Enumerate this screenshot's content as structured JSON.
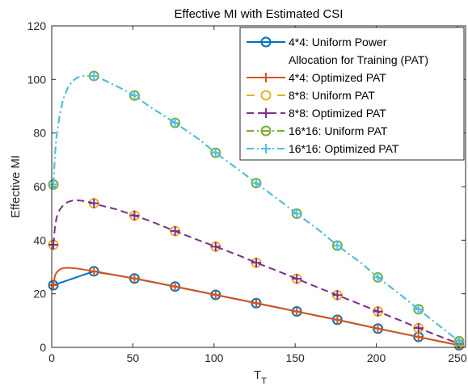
{
  "chart_data": {
    "type": "line",
    "title": "Effective MI with Estimated CSI",
    "xlabel_main": "T",
    "xlabel_sub": "T",
    "ylabel": "Effective MI",
    "xlim": [
      0,
      255
    ],
    "ylim": [
      0,
      120
    ],
    "xticks": [
      0,
      50,
      100,
      150,
      200,
      250
    ],
    "yticks": [
      0,
      20,
      40,
      60,
      80,
      100,
      120
    ],
    "grid": false,
    "legend_position": "top-right",
    "marker_x": [
      1,
      26,
      51,
      76,
      101,
      126,
      151,
      176,
      201,
      226,
      251
    ],
    "curve_x": [
      1,
      2,
      3,
      5,
      7,
      10,
      13,
      16,
      20,
      26,
      30,
      40,
      51,
      60,
      76,
      90,
      101,
      115,
      126,
      140,
      151,
      165,
      176,
      190,
      201,
      215,
      226,
      240,
      251
    ],
    "series": [
      {
        "name": "4*4: Uniform Power Allocation for Training (PAT)",
        "legend_lines": [
          "4*4: Uniform Power",
          "Allocation for Training (PAT)"
        ],
        "color": "#0072BD",
        "line_style": "solid",
        "marker": "circle",
        "marker_values": [
          23.2,
          28.4,
          25.7,
          22.7,
          19.6,
          16.5,
          13.4,
          10.3,
          7.0,
          3.9,
          0.8
        ]
      },
      {
        "name": "4*4: Optimized PAT",
        "color": "#D95319",
        "line_style": "solid",
        "marker": "plus",
        "curve_values": [
          23.2,
          26.8,
          28.0,
          29.1,
          29.6,
          29.7,
          29.6,
          29.4,
          29.0,
          28.4,
          27.8,
          26.9,
          25.7,
          24.7,
          22.7,
          21.0,
          19.6,
          17.9,
          16.5,
          14.8,
          13.4,
          11.6,
          10.3,
          8.5,
          7.0,
          5.3,
          3.9,
          2.1,
          0.8
        ],
        "marker_values": [
          23.2,
          28.4,
          25.7,
          22.7,
          19.6,
          16.5,
          13.4,
          10.3,
          7.0,
          3.9,
          0.8
        ]
      },
      {
        "name": "8*8: Uniform PAT",
        "color": "#EDB120",
        "line_style": "none",
        "marker": "circle",
        "marker_values": [
          38.3,
          53.8,
          49.2,
          43.4,
          37.6,
          31.6,
          25.6,
          19.5,
          13.4,
          7.2,
          1.3
        ]
      },
      {
        "name": "8*8: Optimized PAT",
        "color": "#7E2F8E",
        "line_style": "dashed",
        "marker": "plus",
        "curve_values": [
          38.3,
          45.0,
          48.5,
          51.5,
          53.0,
          54.3,
          54.8,
          54.9,
          54.6,
          53.8,
          53.0,
          51.5,
          49.2,
          47.3,
          43.4,
          40.1,
          37.6,
          34.4,
          31.6,
          28.3,
          25.6,
          22.1,
          19.5,
          16.1,
          13.4,
          10.0,
          7.2,
          3.9,
          1.3
        ],
        "marker_values": [
          38.3,
          53.8,
          49.2,
          43.4,
          37.6,
          31.6,
          25.6,
          19.5,
          13.4,
          7.2,
          1.3
        ]
      },
      {
        "name": "16*16: Uniform PAT",
        "color": "#77AC30",
        "line_style": "dashdot",
        "marker": "circle",
        "curve_values": [
          60.8,
          72.0,
          79.0,
          87.0,
          92.5,
          97.0,
          99.5,
          100.8,
          101.3,
          101.3,
          100.4,
          97.5,
          94.0,
          90.0,
          83.8,
          78.0,
          72.6,
          66.4,
          61.3,
          55.0,
          49.9,
          43.6,
          38.0,
          31.8,
          26.1,
          19.6,
          14.2,
          7.5,
          2.3
        ],
        "marker_values": [
          60.8,
          101.3,
          94.0,
          83.8,
          72.6,
          61.3,
          49.9,
          38.0,
          26.1,
          14.2,
          2.3
        ]
      },
      {
        "name": "16*16: Optimized PAT",
        "color": "#4DBEEE",
        "line_style": "dashdot",
        "marker": "plus",
        "curve_values": [
          60.8,
          72.0,
          79.0,
          87.0,
          92.5,
          97.0,
          99.5,
          100.8,
          101.3,
          101.3,
          100.4,
          97.5,
          94.0,
          90.0,
          83.8,
          78.0,
          72.6,
          66.4,
          61.3,
          55.0,
          49.9,
          43.6,
          38.0,
          31.8,
          26.1,
          19.6,
          14.2,
          7.5,
          2.3
        ],
        "marker_values": [
          60.8,
          101.3,
          94.0,
          83.8,
          72.6,
          61.3,
          49.9,
          38.0,
          26.1,
          14.2,
          2.3
        ]
      }
    ]
  }
}
